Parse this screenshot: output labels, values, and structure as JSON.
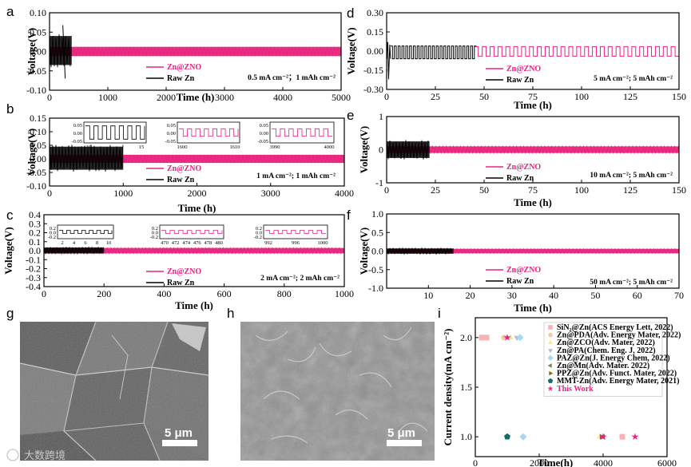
{
  "colors": {
    "zn_zno": "#e8237d",
    "raw_zn": "#000000",
    "sem_g": "#6a6a6a",
    "sem_h": "#8a8a8a"
  },
  "panel_labels": [
    "a",
    "b",
    "c",
    "d",
    "e",
    "f",
    "g",
    "h",
    "i"
  ],
  "legend": {
    "zn_zno": "Zn@ZNO",
    "raw_zn": "Raw Zn"
  },
  "chart_data": [
    {
      "id": "a",
      "type": "line",
      "ylabel": "Voltage(V)",
      "xlabel": "Time (h)",
      "xlim": [
        0,
        5000
      ],
      "ylim": [
        -0.1,
        0.1
      ],
      "xticks": [
        0,
        1000,
        2000,
        3000,
        4000,
        5000
      ],
      "yticks": [
        0.1,
        0.05,
        0.0,
        -0.05,
        -0.1
      ],
      "ytick_labels": [
        "0.10",
        "0.05",
        "0.00",
        "-0.05",
        "-0.10"
      ],
      "condition": "0.5 mA cm⁻²；1 mAh cm⁻²",
      "series": [
        {
          "name": "Raw Zn",
          "color": "#000000",
          "x_end": 380,
          "band": [
            -0.035,
            0.04
          ],
          "spike": [
            0.068,
            -0.07
          ]
        },
        {
          "name": "Zn@ZNO",
          "color": "#e8237d",
          "x_end": 5000,
          "band": [
            -0.012,
            0.012
          ]
        }
      ]
    },
    {
      "id": "b",
      "type": "line",
      "ylabel": "Voltage(V)",
      "xlabel": "Time (h)",
      "xlim": [
        0,
        4000
      ],
      "ylim": [
        -0.1,
        0.15
      ],
      "xticks": [
        0,
        1000,
        2000,
        3000,
        4000
      ],
      "yticks": [
        0.15,
        0.1,
        0.05,
        0.0,
        -0.05,
        -0.1
      ],
      "ytick_labels": [
        "0.15",
        "0.10",
        "0.05",
        "0.00",
        "-0.05",
        "-0.10"
      ],
      "condition": "1 mA cm⁻²; 1 mAh cm⁻²",
      "series": [
        {
          "name": "Raw Zn",
          "color": "#000000",
          "x_end": 1000,
          "band": [
            -0.04,
            0.045
          ]
        },
        {
          "name": "Zn@ZNO",
          "color": "#e8237d",
          "x_end": 4000,
          "band": [
            -0.015,
            0.015
          ]
        }
      ],
      "insets": [
        {
          "yticks": [
            "0.05",
            "0.00",
            "-0.05"
          ],
          "xticks": [
            "10",
            "15"
          ]
        },
        {
          "yticks": [
            "0.05",
            "0.00",
            "-0.05"
          ],
          "xticks": [
            "1600",
            "1610"
          ]
        },
        {
          "yticks": [
            "0.05",
            "0.00",
            "-0.05"
          ],
          "xticks": [
            "3990",
            "4000"
          ]
        }
      ]
    },
    {
      "id": "c",
      "type": "line",
      "ylabel": "Voltage(V)",
      "xlabel": "Time (h)",
      "xlim": [
        0,
        1000
      ],
      "ylim": [
        -0.4,
        0.4
      ],
      "xticks": [
        0,
        200,
        400,
        600,
        800,
        1000
      ],
      "yticks": [
        0.4,
        0.3,
        0.2,
        0.1,
        0.0,
        -0.1,
        -0.2,
        -0.3,
        -0.4
      ],
      "ytick_labels": [
        "0.4",
        "0.3",
        "0.2",
        "0.1",
        "0.0",
        "-0.1",
        "-0.2",
        "-0.3",
        "-0.4"
      ],
      "condition": "2 mA cm⁻²; 2 mAh cm⁻²",
      "series": [
        {
          "name": "Raw Zn",
          "color": "#000000",
          "x_end": 200,
          "band": [
            -0.03,
            0.035
          ]
        },
        {
          "name": "Zn@ZNO",
          "color": "#e8237d",
          "x_end": 1000,
          "band": [
            -0.03,
            0.03
          ]
        }
      ],
      "insets": [
        {
          "yticks": [
            "0.2",
            "0.0",
            "-0.2"
          ],
          "xticks": [
            "2",
            "4",
            "6",
            "8",
            "10"
          ]
        },
        {
          "yticks": [
            "0.2",
            "0.0",
            "-0.2"
          ],
          "xticks": [
            "470",
            "472",
            "474",
            "476",
            "478",
            "480"
          ]
        },
        {
          "yticks": [
            "0.2",
            "0.0",
            "-0.2"
          ],
          "xticks": [
            "992",
            "996",
            "1000"
          ]
        }
      ]
    },
    {
      "id": "d",
      "type": "line",
      "ylabel": "Voltage(V)",
      "xlabel": "Time (h)",
      "xlim": [
        0,
        150
      ],
      "ylim": [
        -0.3,
        0.3
      ],
      "xticks": [
        0,
        25,
        50,
        75,
        100,
        125,
        150
      ],
      "yticks": [
        0.3,
        0.15,
        0.0,
        -0.15,
        -0.3
      ],
      "ytick_labels": [
        "0.30",
        "0.15",
        "0.00",
        "-0.15",
        "-0.30"
      ],
      "condition": "5 mA cm⁻²; 5 mAh cm⁻²",
      "series": [
        {
          "name": "Raw Zn",
          "color": "#000000",
          "x_end": 45,
          "band": [
            -0.06,
            0.04
          ],
          "start_spike": [
            0.07,
            -0.22
          ]
        },
        {
          "name": "Zn@ZNO",
          "color": "#e8237d",
          "x_end": 150,
          "band": [
            -0.04,
            0.035
          ]
        }
      ]
    },
    {
      "id": "e",
      "type": "line",
      "ylabel": "Voltage(V)",
      "xlabel": "Time (h)",
      "xlim": [
        0,
        150
      ],
      "ylim": [
        -1,
        1
      ],
      "xticks": [
        0,
        25,
        50,
        75,
        100,
        125,
        150
      ],
      "yticks": [
        1,
        0,
        -1
      ],
      "ytick_labels": [
        "1",
        "0",
        "-1"
      ],
      "condition": "10 mA cm⁻²; 5 mAh cm⁻²",
      "series": [
        {
          "name": "Raw Zn",
          "color": "#000000",
          "x_end": 22,
          "band": [
            -0.25,
            0.25
          ]
        },
        {
          "name": "Zn@ZNO",
          "color": "#e8237d",
          "x_end": 150,
          "band": [
            -0.1,
            0.1
          ]
        }
      ]
    },
    {
      "id": "f",
      "type": "line",
      "ylabel": "Voltage(V)",
      "xlabel": "Time (h)",
      "xlim": [
        0,
        70
      ],
      "ylim": [
        -1,
        1
      ],
      "xticks": [
        10,
        20,
        30,
        40,
        50,
        60,
        70
      ],
      "yticks": [
        1.0,
        0.5,
        0.0,
        -0.5,
        -1.0
      ],
      "ytick_labels": [
        "1.0",
        "0.5",
        "0.0",
        "-0.5",
        "-1.0"
      ],
      "condition": "50 mA cm⁻²; 5 mAh cm⁻²",
      "series": [
        {
          "name": "Raw Zn",
          "color": "#000000",
          "x_end": 16,
          "band": [
            -0.07,
            0.07
          ]
        },
        {
          "name": "Zn@ZNO",
          "color": "#e8237d",
          "x_end": 70,
          "band": [
            -0.06,
            0.06
          ]
        }
      ]
    },
    {
      "id": "i",
      "type": "scatter",
      "ylabel": "Current density(mA cm⁻²)",
      "xlabel": "Time(h)",
      "xlim": [
        0,
        6000
      ],
      "ylim": [
        0.8,
        2.2
      ],
      "xticks": [
        0,
        2000,
        4000,
        6000
      ],
      "yticks": [
        1.0,
        1.5,
        2.0
      ],
      "ytick_labels": [
        "1.0",
        "1.5",
        "2.0"
      ],
      "series": [
        {
          "name": "SiN₂@Zn(ACS Energy Lett, 2022)",
          "color": "#f5b3b3",
          "marker": "square",
          "points": [
            [
              200,
              2
            ],
            [
              350,
              2
            ],
            [
              4600,
              1
            ]
          ]
        },
        {
          "name": "Zn@PDA(Adv. Energy Mater, 2022)",
          "color": "#f6c9a6",
          "marker": "circle",
          "points": [
            [
              900,
              2
            ],
            [
              1000,
              1
            ]
          ]
        },
        {
          "name": "Zn@ZCO(Adv. Mater, 2022)",
          "color": "#f3e6a0",
          "marker": "triangle-up",
          "points": [
            [
              1100,
              2
            ],
            [
              3900,
              1
            ]
          ]
        },
        {
          "name": "Zn@PA(Chem. Eng. J, 2022)",
          "color": "#b9b9c8",
          "marker": "triangle-down",
          "points": [
            [
              1300,
              2
            ]
          ]
        },
        {
          "name": "PAZ@Zn(J. Energy Chem, 2022)",
          "color": "#a8d8f0",
          "marker": "diamond",
          "points": [
            [
              1400,
              2
            ],
            [
              1500,
              1
            ]
          ]
        },
        {
          "name": "Zn@Mn(Adv. Mater. 2022)",
          "color": "#6d8a55",
          "marker": "triangle-left",
          "points": [
            [
              4000,
              1
            ]
          ]
        },
        {
          "name": "PPZ@Zn(Adv. Funct. Mater, 2022)",
          "color": "#7a7a18",
          "marker": "triangle-right",
          "points": [
            [
              3950,
              1
            ]
          ]
        },
        {
          "name": "MMT-Zn(Adv. Energy Mater, 2021)",
          "color": "#146b6b",
          "marker": "pentagon",
          "points": [
            [
              1000,
              1
            ]
          ]
        },
        {
          "name": "This Work",
          "color": "#e8237d",
          "marker": "star",
          "points": [
            [
              1000,
              2
            ],
            [
              4000,
              1
            ],
            [
              5000,
              1
            ]
          ]
        }
      ]
    }
  ],
  "sem": [
    {
      "id": "g",
      "scale": "5 μm"
    },
    {
      "id": "h",
      "scale": "5 μm"
    }
  ],
  "watermark": "大数跨境"
}
